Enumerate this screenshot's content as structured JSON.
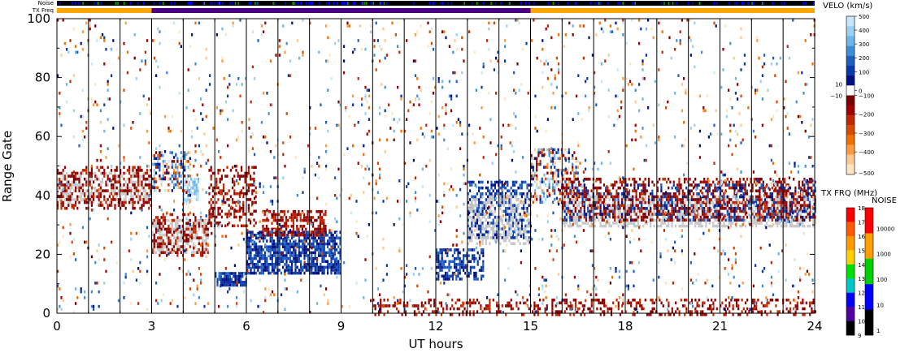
{
  "chart_data": {
    "type": "heatmap",
    "title": "",
    "xlabel": "UT hours",
    "ylabel": "Range Gate",
    "xlim": [
      0,
      24
    ],
    "ylim": [
      0,
      100
    ],
    "x_ticks": [
      "0",
      "3",
      "6",
      "9",
      "12",
      "15",
      "18",
      "21",
      "24"
    ],
    "y_ticks": [
      "0",
      "20",
      "40",
      "60",
      "80",
      "100"
    ],
    "scan_boundaries_hours": [
      1,
      2,
      3,
      4,
      5,
      6,
      7,
      8,
      9,
      10,
      11,
      12,
      13,
      14,
      15,
      16,
      17,
      18,
      19,
      20,
      21,
      22,
      23,
      24
    ],
    "top_bars": {
      "noise_label": "Noise",
      "txfreq_label": "TX Freq",
      "txfreq_segments": [
        {
          "start": 0,
          "end": 3,
          "color": "#ffa500"
        },
        {
          "start": 3,
          "end": 15,
          "color": "#4b0082"
        },
        {
          "start": 15,
          "end": 24,
          "color": "#ffa500"
        }
      ]
    },
    "velocity_colorbar": {
      "title": "VELO (km/s)",
      "ticks": [
        "500",
        "400",
        "300",
        "200",
        "100",
        "0",
        "−100",
        "−200",
        "−300",
        "−400",
        "−500"
      ],
      "ground_scatter_labels": [
        "10",
        "−10"
      ],
      "colors": [
        "#c8e6fa",
        "#9ccff2",
        "#6eb6ea",
        "#3f8fd8",
        "#1f5fc0",
        "#0a3aa8",
        "#001080",
        "#ffffff",
        "#7a0000",
        "#a00000",
        "#c02800",
        "#d84a00",
        "#f07000",
        "#ff9a40",
        "#ffc890",
        "#ffe4c4"
      ]
    },
    "txfreq_colorbar": {
      "title": "TX FRQ (MHz)",
      "ticks": [
        "18",
        "17",
        "16",
        "15",
        "14",
        "13",
        "12",
        "11",
        "10",
        "9"
      ],
      "colors": [
        "#ff0000",
        "#ff5a00",
        "#ff9a00",
        "#ffd000",
        "#00e000",
        "#00c8c8",
        "#0000ff",
        "#5000a0",
        "#000000"
      ]
    },
    "noise_colorbar": {
      "title": "NOISE",
      "ticks": [
        "10000",
        "1000",
        "100",
        "10",
        "1"
      ],
      "colors": [
        "#ff0000",
        "#ffa000",
        "#00d000",
        "#0000ff",
        "#000000"
      ]
    },
    "ground_scatter_color": "#c8c8c8",
    "echo_regions": [
      {
        "x0": 0.0,
        "x1": 3.0,
        "y0": 38,
        "y1": 48,
        "kind": "gs",
        "density": 0.45
      },
      {
        "x0": 0.0,
        "x1": 3.0,
        "y0": 36,
        "y1": 50,
        "kind": "neg",
        "density": 0.35
      },
      {
        "x0": 3.0,
        "x1": 4.8,
        "y0": 21,
        "y1": 32,
        "kind": "gs",
        "density": 0.55
      },
      {
        "x0": 3.0,
        "x1": 4.8,
        "y0": 20,
        "y1": 34,
        "kind": "neg",
        "density": 0.3
      },
      {
        "x0": 3.0,
        "x1": 4.2,
        "y0": 42,
        "y1": 55,
        "kind": "mixed",
        "density": 0.45
      },
      {
        "x0": 4.0,
        "x1": 4.5,
        "y0": 38,
        "y1": 46,
        "kind": "pos_light",
        "density": 0.6
      },
      {
        "x0": 4.8,
        "x1": 6.3,
        "y0": 30,
        "y1": 50,
        "kind": "neg",
        "density": 0.4
      },
      {
        "x0": 5.0,
        "x1": 6.0,
        "y0": 10,
        "y1": 14,
        "kind": "pos_dark",
        "density": 0.85
      },
      {
        "x0": 6.0,
        "x1": 9.0,
        "y0": 14,
        "y1": 28,
        "kind": "pos_dark",
        "density": 0.75
      },
      {
        "x0": 6.5,
        "x1": 8.5,
        "y0": 27,
        "y1": 35,
        "kind": "neg",
        "density": 0.55
      },
      {
        "x0": 12.0,
        "x1": 13.5,
        "y0": 12,
        "y1": 22,
        "kind": "pos_dark",
        "density": 0.55
      },
      {
        "x0": 13.0,
        "x1": 15.0,
        "y0": 26,
        "y1": 45,
        "kind": "pos_dark",
        "density": 0.45
      },
      {
        "x0": 13.0,
        "x1": 15.0,
        "y0": 24,
        "y1": 40,
        "kind": "gs",
        "density": 0.4
      },
      {
        "x0": 15.0,
        "x1": 16.5,
        "y0": 38,
        "y1": 56,
        "kind": "mixed",
        "density": 0.5
      },
      {
        "x0": 16.0,
        "x1": 24.0,
        "y0": 30,
        "y1": 40,
        "kind": "gs",
        "density": 0.55
      },
      {
        "x0": 16.0,
        "x1": 24.0,
        "y0": 32,
        "y1": 46,
        "kind": "neg",
        "density": 0.4
      },
      {
        "x0": 16.0,
        "x1": 24.0,
        "y0": 32,
        "y1": 44,
        "kind": "pos_dark",
        "density": 0.2
      },
      {
        "x0": 10.0,
        "x1": 24.0,
        "y0": 0,
        "y1": 5,
        "kind": "neg",
        "density": 0.3
      },
      {
        "x0": 0.0,
        "x1": 24.0,
        "y0": 0,
        "y1": 100,
        "kind": "mixed",
        "density": 0.035
      }
    ]
  }
}
